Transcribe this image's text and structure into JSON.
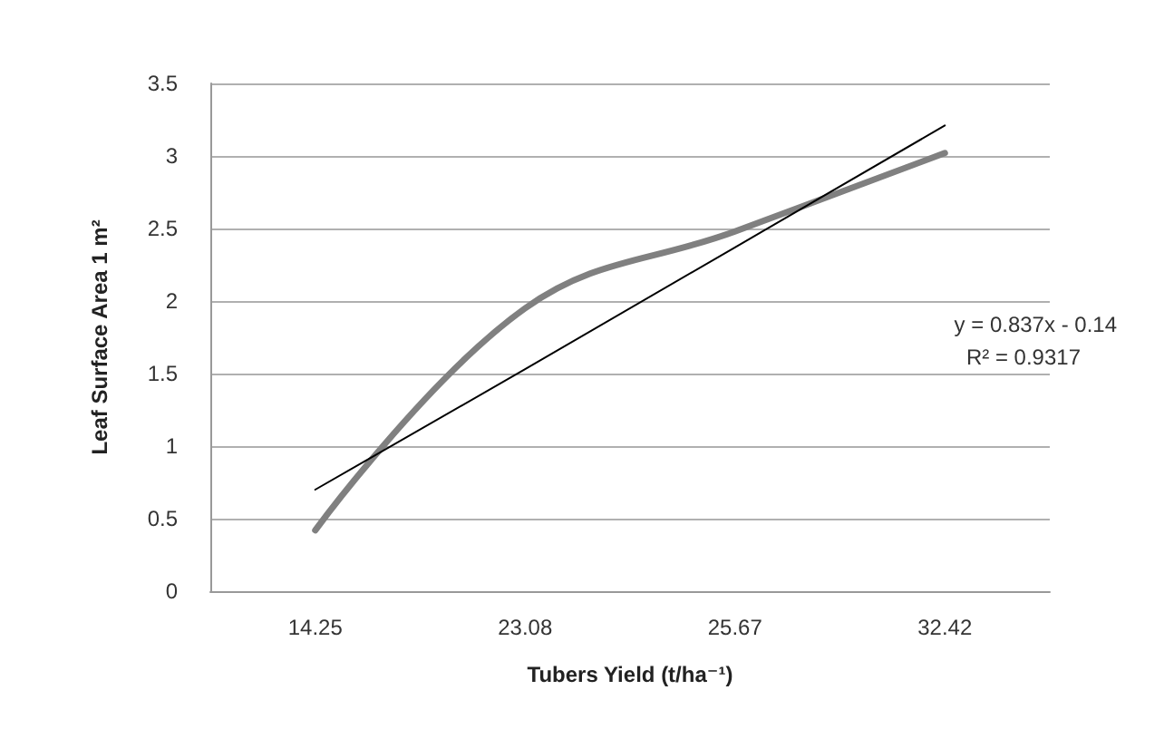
{
  "chart_data": {
    "type": "line",
    "xlabel": "Tubers Yield (t/ha⁻¹)",
    "ylabel": "Leaf Surface Area 1 m²",
    "categories": [
      "14.25",
      "23.08",
      "25.67",
      "32.42"
    ],
    "series": [
      {
        "color": "#808080",
        "values": [
          0.42,
          1.95,
          2.48,
          3.02
        ]
      },
      {
        "type": "line",
        "color": "#000000",
        "x": [
          "14.25",
          "23.08",
          "25.67",
          "32.42"
        ],
        "values": [
          0.7,
          1.53,
          2.37,
          3.21
        ]
      }
    ],
    "ylim": [
      0,
      3.5
    ],
    "yticks": [
      0,
      0.5,
      1,
      1.5,
      2,
      2.5,
      3,
      3.5
    ],
    "grid": "y",
    "marker": "none",
    "line_style": "solid",
    "annotations": [
      "y = 0.837x - 0.14",
      "R² = 0.9317"
    ]
  }
}
